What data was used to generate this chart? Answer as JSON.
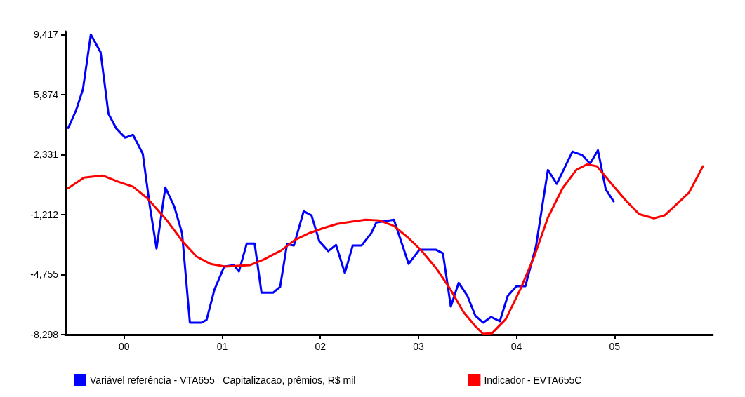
{
  "chart_data": {
    "type": "line",
    "legend": "bottom",
    "grid": false,
    "marker": "none",
    "line_style": "solid",
    "xlim": [
      1999.4,
      2006.0
    ],
    "xticks": [
      {
        "value": 2000,
        "label": "00"
      },
      {
        "value": 2001,
        "label": "01"
      },
      {
        "value": 2002,
        "label": "02"
      },
      {
        "value": 2003,
        "label": "03"
      },
      {
        "value": 2004,
        "label": "04"
      },
      {
        "value": 2005,
        "label": "05"
      }
    ],
    "ylim": [
      -8298,
      9600
    ],
    "yticks": [
      {
        "value": -8298,
        "label": "-8,298"
      },
      {
        "value": -4755,
        "label": "-4,755"
      },
      {
        "value": -1212,
        "label": "-1,212"
      },
      {
        "value": 2331,
        "label": "2,331"
      },
      {
        "value": 5874,
        "label": "5,874"
      },
      {
        "value": 9417,
        "label": "9,417"
      }
    ],
    "series": [
      {
        "name": "Variável referência - VTA655   Capitalizacao, prêmios, R$ mil",
        "color": "#0000ff",
        "x": [
          1999.43,
          1999.51,
          1999.58,
          1999.66,
          1999.76,
          1999.84,
          1999.92,
          2000.01,
          2000.09,
          2000.19,
          2000.26,
          2000.33,
          2000.42,
          2000.51,
          2000.59,
          2000.67,
          2000.79,
          2000.84,
          2000.92,
          2001.02,
          2001.12,
          2001.17,
          2001.25,
          2001.33,
          2001.4,
          2001.52,
          2001.59,
          2001.66,
          2001.73,
          2001.83,
          2001.91,
          2001.99,
          2002.08,
          2002.16,
          2002.25,
          2002.33,
          2002.42,
          2002.52,
          2002.57,
          2002.75,
          2002.9,
          2003.01,
          2003.18,
          2003.25,
          2003.33,
          2003.41,
          2003.5,
          2003.58,
          2003.66,
          2003.74,
          2003.83,
          2003.91,
          2004.0,
          2004.09,
          2004.2,
          2004.32,
          2004.41,
          2004.57,
          2004.67,
          2004.75,
          2004.83,
          2004.91,
          2004.99
        ],
        "values": [
          3910,
          4950,
          6190,
          9420,
          8380,
          4740,
          3870,
          3330,
          3500,
          2380,
          -640,
          -3210,
          390,
          -720,
          -2300,
          -7590,
          -7590,
          -7430,
          -5650,
          -4280,
          -4200,
          -4570,
          -2920,
          -2920,
          -5820,
          -5820,
          -5480,
          -2960,
          -3040,
          -1010,
          -1260,
          -2790,
          -3370,
          -3000,
          -4660,
          -3040,
          -3040,
          -2300,
          -1680,
          -1510,
          -4120,
          -3290,
          -3290,
          -3500,
          -6640,
          -5240,
          -6020,
          -7180,
          -7590,
          -7260,
          -7510,
          -6020,
          -5440,
          -5440,
          -3040,
          1430,
          600,
          2510,
          2300,
          1800,
          2590,
          270,
          -430
        ]
      },
      {
        "name": "Indicador - EVTA655C",
        "color": "#ff0000",
        "x": [
          1999.43,
          1999.59,
          1999.78,
          1999.94,
          2000.09,
          2000.24,
          2000.43,
          2000.6,
          2000.74,
          2000.88,
          2001.03,
          2001.28,
          2001.42,
          2001.6,
          2001.74,
          2001.89,
          2002.03,
          2002.17,
          2002.32,
          2002.46,
          2002.6,
          2002.75,
          2002.89,
          2003.03,
          2003.18,
          2003.32,
          2003.46,
          2003.58,
          2003.66,
          2003.75,
          2003.89,
          2004.04,
          2004.18,
          2004.32,
          2004.47,
          2004.61,
          2004.72,
          2004.82,
          2004.97,
          2005.11,
          2005.25,
          2005.4,
          2005.51,
          2005.61,
          2005.76,
          2005.9
        ],
        "values": [
          350,
          970,
          1100,
          730,
          440,
          -270,
          -1510,
          -2830,
          -3700,
          -4120,
          -4280,
          -4200,
          -3870,
          -3330,
          -2710,
          -2300,
          -2010,
          -1760,
          -1630,
          -1510,
          -1550,
          -1880,
          -2550,
          -3330,
          -4370,
          -5570,
          -6970,
          -7800,
          -8260,
          -8220,
          -7390,
          -5610,
          -3700,
          -1390,
          350,
          1430,
          1760,
          1640,
          600,
          -350,
          -1180,
          -1430,
          -1260,
          -720,
          100,
          1640
        ]
      }
    ]
  }
}
